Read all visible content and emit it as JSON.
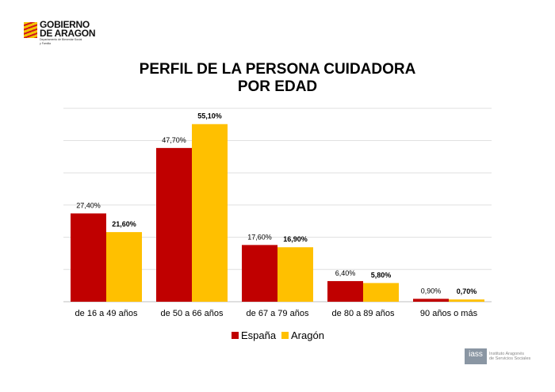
{
  "logo": {
    "line1": "GOBIERNO",
    "line2": "DE ARAGON",
    "sub1": "Departamento de Bienestar Social",
    "sub2": "y Familia"
  },
  "title": {
    "line1": "PERFIL DE LA PERSONA CUIDADORA",
    "line2": "POR EDAD"
  },
  "footer_logo": {
    "mark": "iass",
    "line1": "Instituto Aragonés",
    "line2": "de Servicios Sociales"
  },
  "chart_data": {
    "type": "bar",
    "title": "PERFIL DE LA PERSONA CUIDADORA POR EDAD",
    "categories": [
      "de 16 a 49 años",
      "de 50 a 66 años",
      "de 67 a 79 años",
      "de 80 a 89 años",
      "90 años o más"
    ],
    "series": [
      {
        "name": "España",
        "color": "#c00000",
        "values": [
          27.4,
          47.7,
          17.6,
          6.4,
          0.9
        ],
        "labels": [
          "27,40%",
          "47,70%",
          "17,60%",
          "6,40%",
          "0,90%"
        ]
      },
      {
        "name": "Aragón",
        "color": "#ffc000",
        "values": [
          21.6,
          55.1,
          16.9,
          5.8,
          0.7
        ],
        "labels": [
          "21,60%",
          "55,10%",
          "16,90%",
          "5,80%",
          "0,70%"
        ]
      }
    ],
    "ylim": [
      0,
      60
    ],
    "grid": true,
    "legend": "bottom"
  }
}
